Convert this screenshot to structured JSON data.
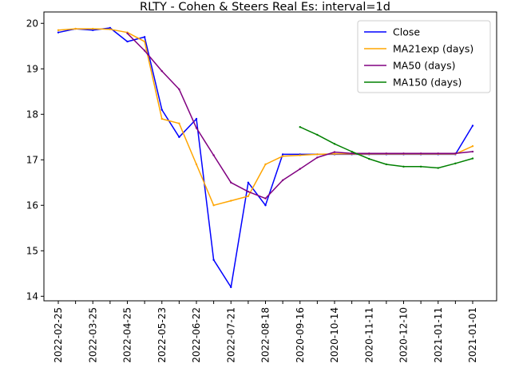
{
  "chart_data": {
    "type": "line",
    "title": "RLTY - Cohen & Steers Real Es: interval=1d",
    "xlabel": "",
    "ylabel": "",
    "x": [
      "2022-02-25",
      "2022-03-11",
      "2022-03-25",
      "2022-04-08",
      "2022-04-25",
      "2022-05-09",
      "2022-05-23",
      "2022-06-08",
      "2022-06-22",
      "2022-07-07",
      "2022-07-21",
      "2022-08-04",
      "2022-08-18",
      "2020-09-02",
      "2020-09-16",
      "2020-09-30",
      "2020-10-14",
      "2020-10-28",
      "2020-11-11",
      "2020-11-25",
      "2020-12-10",
      "2020-12-24",
      "2021-01-11",
      "2021-01-25",
      "2021-01-01"
    ],
    "xtick_labels": [
      "2022-02-25",
      "2022-03-25",
      "2022-04-25",
      "2022-05-23",
      "2022-06-22",
      "2022-07-21",
      "2022-08-18",
      "2020-09-16",
      "2020-10-14",
      "2020-11-11",
      "2020-12-10",
      "2021-01-11",
      "2021-01-01"
    ],
    "ylim": [
      13.9,
      20.25
    ],
    "yticks": [
      14,
      15,
      16,
      17,
      18,
      19,
      20
    ],
    "legend": "top-right",
    "grid": false,
    "series": [
      {
        "name": "Close",
        "color": "#0000ff",
        "values": [
          19.8,
          19.88,
          19.85,
          19.9,
          19.6,
          19.7,
          18.1,
          17.5,
          17.9,
          14.8,
          14.2,
          16.5,
          16.0,
          17.12,
          17.12,
          17.12,
          17.12,
          17.12,
          17.12,
          17.12,
          17.12,
          17.12,
          17.12,
          17.12,
          17.75
        ]
      },
      {
        "name": "MA21exp (days)",
        "color": "#ffa500",
        "values": [
          19.85,
          19.88,
          19.88,
          19.87,
          19.8,
          19.6,
          17.9,
          17.8,
          16.9,
          16.0,
          16.1,
          16.2,
          16.9,
          17.08,
          17.1,
          17.12,
          17.13,
          17.13,
          17.13,
          17.13,
          17.13,
          17.13,
          17.13,
          17.13,
          17.3
        ]
      },
      {
        "name": "MA50 (days)",
        "color": "#800080",
        "values": [
          null,
          null,
          null,
          null,
          19.78,
          19.4,
          18.95,
          18.55,
          17.7,
          17.1,
          16.5,
          16.3,
          16.15,
          16.55,
          16.8,
          17.05,
          17.17,
          17.14,
          17.14,
          17.14,
          17.14,
          17.14,
          17.14,
          17.14,
          17.18
        ]
      },
      {
        "name": "MA150 (days)",
        "color": "#008000",
        "values": [
          null,
          null,
          null,
          null,
          null,
          null,
          null,
          null,
          null,
          null,
          null,
          null,
          null,
          null,
          17.72,
          17.55,
          17.35,
          17.18,
          17.02,
          16.9,
          16.85,
          16.85,
          16.82,
          16.92,
          17.03
        ]
      }
    ]
  }
}
